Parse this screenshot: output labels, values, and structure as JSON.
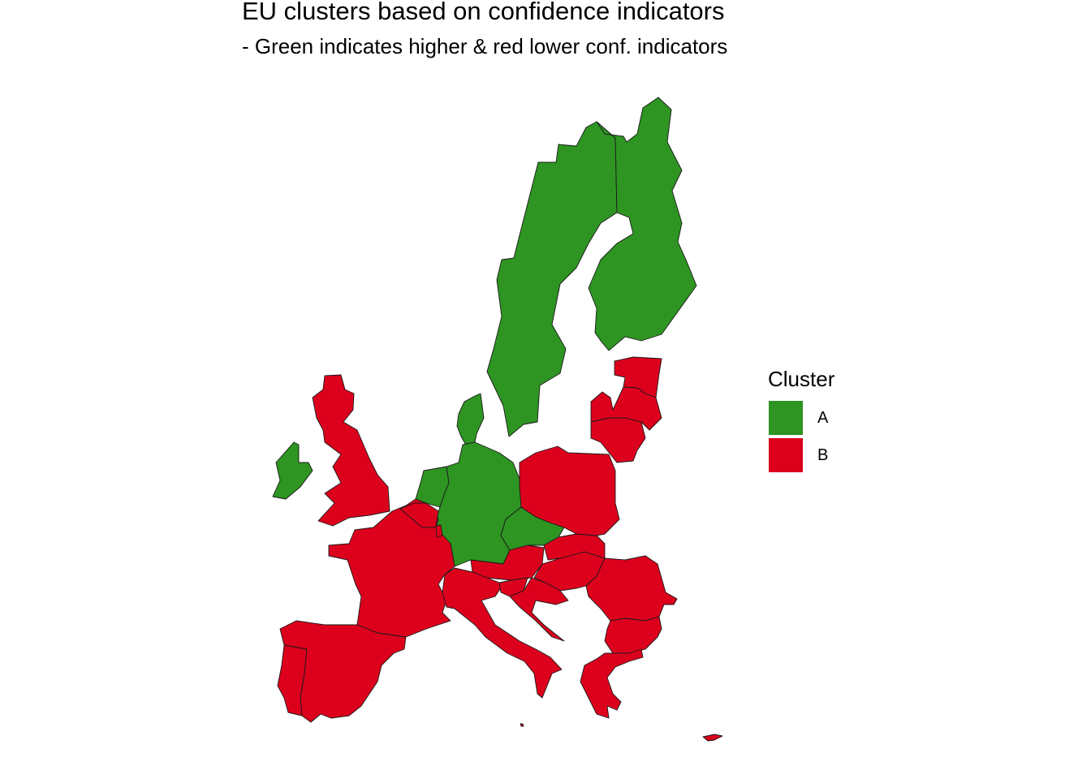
{
  "title": "EU clusters based on confidence indicators",
  "subtitle": "- Green indicates higher & red lower conf. indicators",
  "legend": {
    "title": "Cluster",
    "items": [
      {
        "label": "A",
        "color": "#2e9422"
      },
      {
        "label": "B",
        "color": "#dc001c"
      }
    ]
  },
  "map_data": {
    "type": "choropleth",
    "clusters": {
      "A": [
        "Sweden",
        "Finland",
        "Denmark",
        "Germany",
        "Netherlands",
        "Czechia",
        "Ireland"
      ],
      "B": [
        "United Kingdom",
        "France",
        "Belgium",
        "Luxembourg",
        "Austria",
        "Italy",
        "Slovenia",
        "Croatia",
        "Hungary",
        "Slovakia",
        "Poland",
        "Estonia",
        "Latvia",
        "Lithuania",
        "Romania",
        "Bulgaria",
        "Greece",
        "Spain",
        "Portugal",
        "Cyprus",
        "Malta"
      ]
    },
    "colors": {
      "A": "#2e9422",
      "B": "#dc001c"
    }
  }
}
